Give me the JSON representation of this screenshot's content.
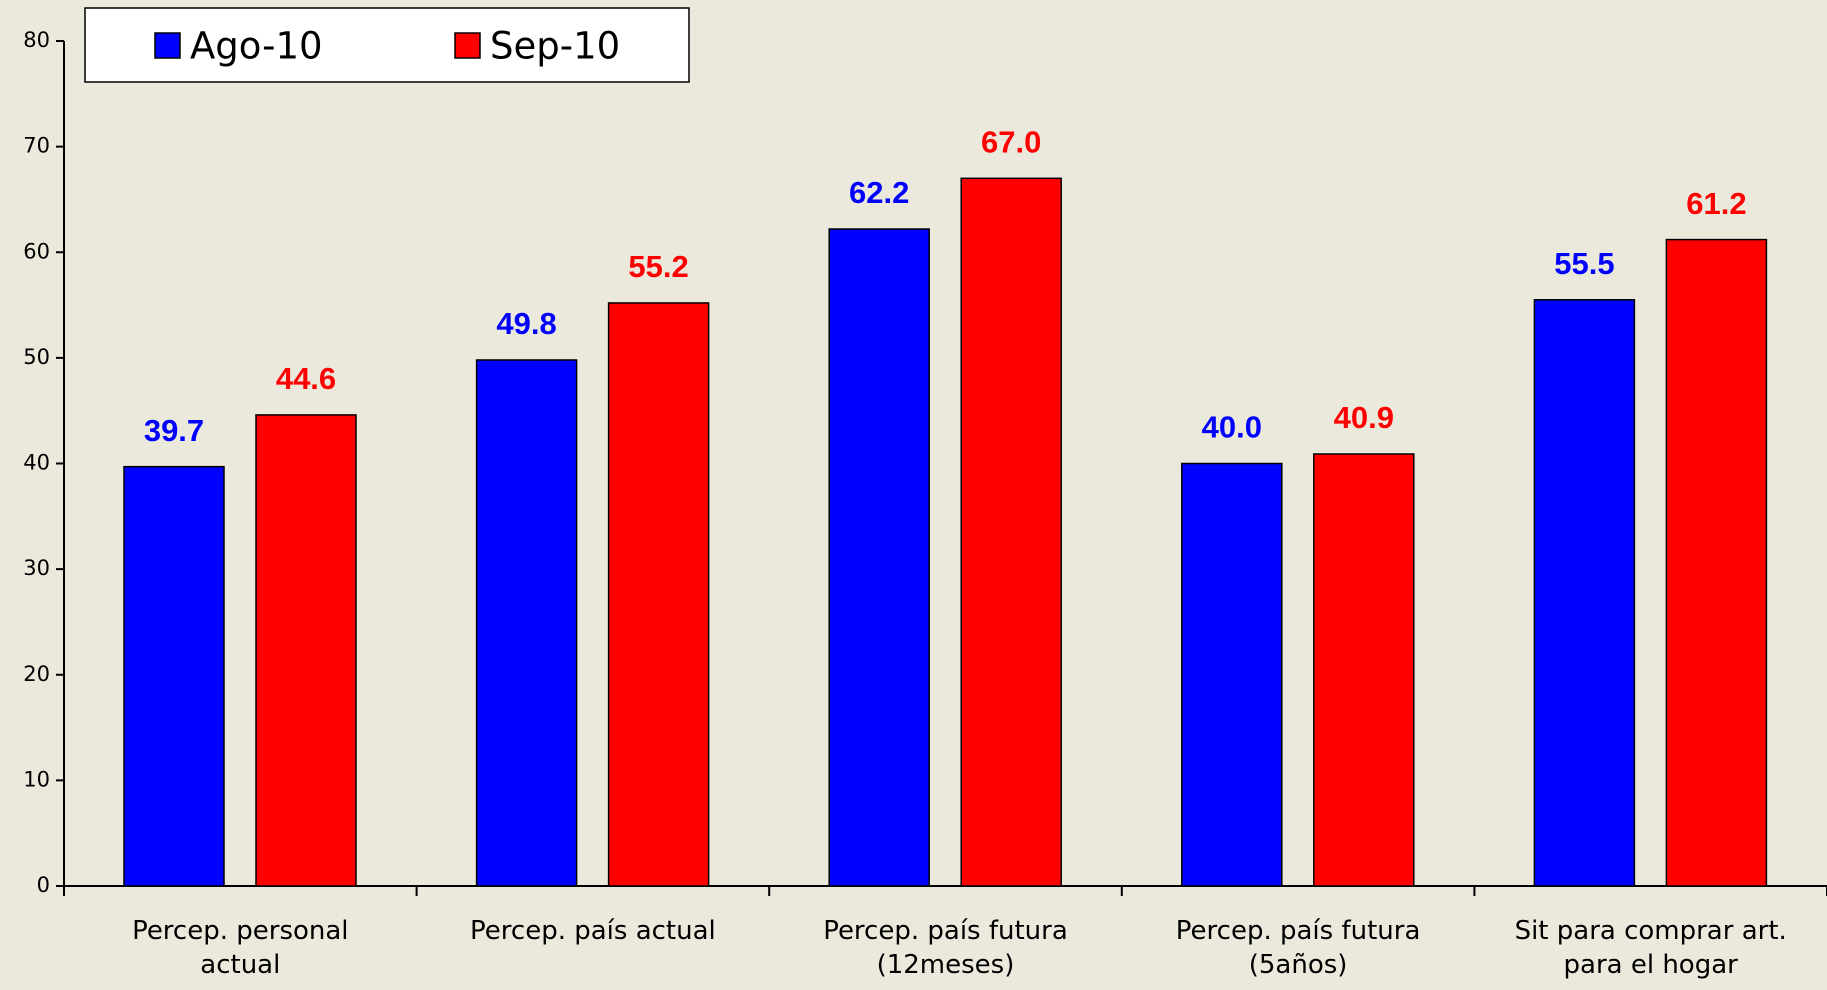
{
  "chart_data": {
    "type": "bar",
    "categories": [
      "Percep. personal actual",
      "Percep. país actual",
      "Percep. país futura (12meses)",
      "Percep. país futura (5años)",
      "Sit para comprar art. para el hogar"
    ],
    "series": [
      {
        "name": "Ago-10",
        "color": "#0000ff",
        "values": [
          39.7,
          49.8,
          62.2,
          40.0,
          55.5
        ],
        "value_labels": [
          "39.7",
          "49.8",
          "62.2",
          "40.0",
          "55.5"
        ]
      },
      {
        "name": "Sep-10",
        "color": "#ff0000",
        "values": [
          44.6,
          55.2,
          67.0,
          40.9,
          61.2
        ],
        "value_labels": [
          "44.6",
          "55.2",
          "67.0",
          "40.9",
          "61.2"
        ]
      }
    ],
    "ylim": [
      0,
      80
    ],
    "yticks": [
      0,
      10,
      20,
      30,
      40,
      50,
      60,
      70,
      80
    ],
    "grid": false,
    "legend": "top-left"
  }
}
